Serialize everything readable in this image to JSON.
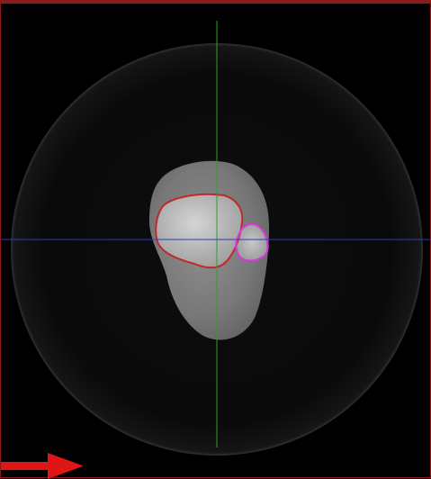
{
  "viewer": {
    "orientation_marker": "arrow-right-icon",
    "colors": {
      "frame_border": "#8b1a1a",
      "crosshair_vertical": "#2e9e2e",
      "crosshair_horizontal": "#2a3fb5",
      "tibia_contour": "#c0282c",
      "fibula_contour": "#d23cd6",
      "orientation_arrow": "#e01515"
    }
  }
}
